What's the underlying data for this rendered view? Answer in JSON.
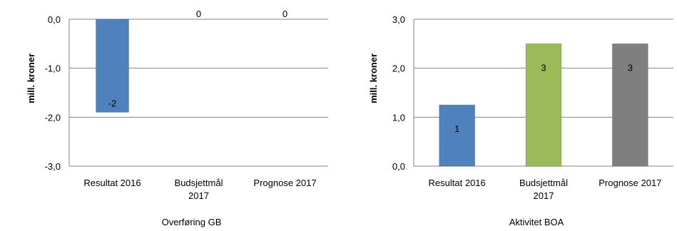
{
  "chart_data": [
    {
      "type": "bar",
      "title": "",
      "xlabel": "Overføring GB",
      "ylabel": "mill. kroner",
      "ylim": [
        -3,
        0
      ],
      "yticks": [
        "0,0",
        "-1,0",
        "-2,0",
        "-3,0"
      ],
      "categories": [
        [
          "Resultat 2016"
        ],
        [
          "Budsjettmål",
          "2017"
        ],
        [
          "Prognose 2017"
        ]
      ],
      "values": [
        -1.9,
        0,
        0
      ],
      "data_labels": [
        "-2",
        "0",
        "0"
      ],
      "colors": [
        "#4f81bd",
        "#4f81bd",
        "#4f81bd"
      ],
      "grid": true
    },
    {
      "type": "bar",
      "title": "",
      "xlabel": "Aktivitet BOA",
      "ylabel": "mill. kroner",
      "ylim": [
        0,
        3
      ],
      "yticks": [
        "3,0",
        "2,0",
        "1,0",
        "0,0"
      ],
      "categories": [
        [
          "Resultat 2016"
        ],
        [
          "Budsjettmål",
          "2017"
        ],
        [
          "Prognose 2017"
        ]
      ],
      "values": [
        1.25,
        2.5,
        2.5
      ],
      "data_labels": [
        "1",
        "3",
        "3"
      ],
      "colors": [
        "#4f81bd",
        "#9bbb59",
        "#7f7f7f"
      ],
      "grid": true
    }
  ]
}
